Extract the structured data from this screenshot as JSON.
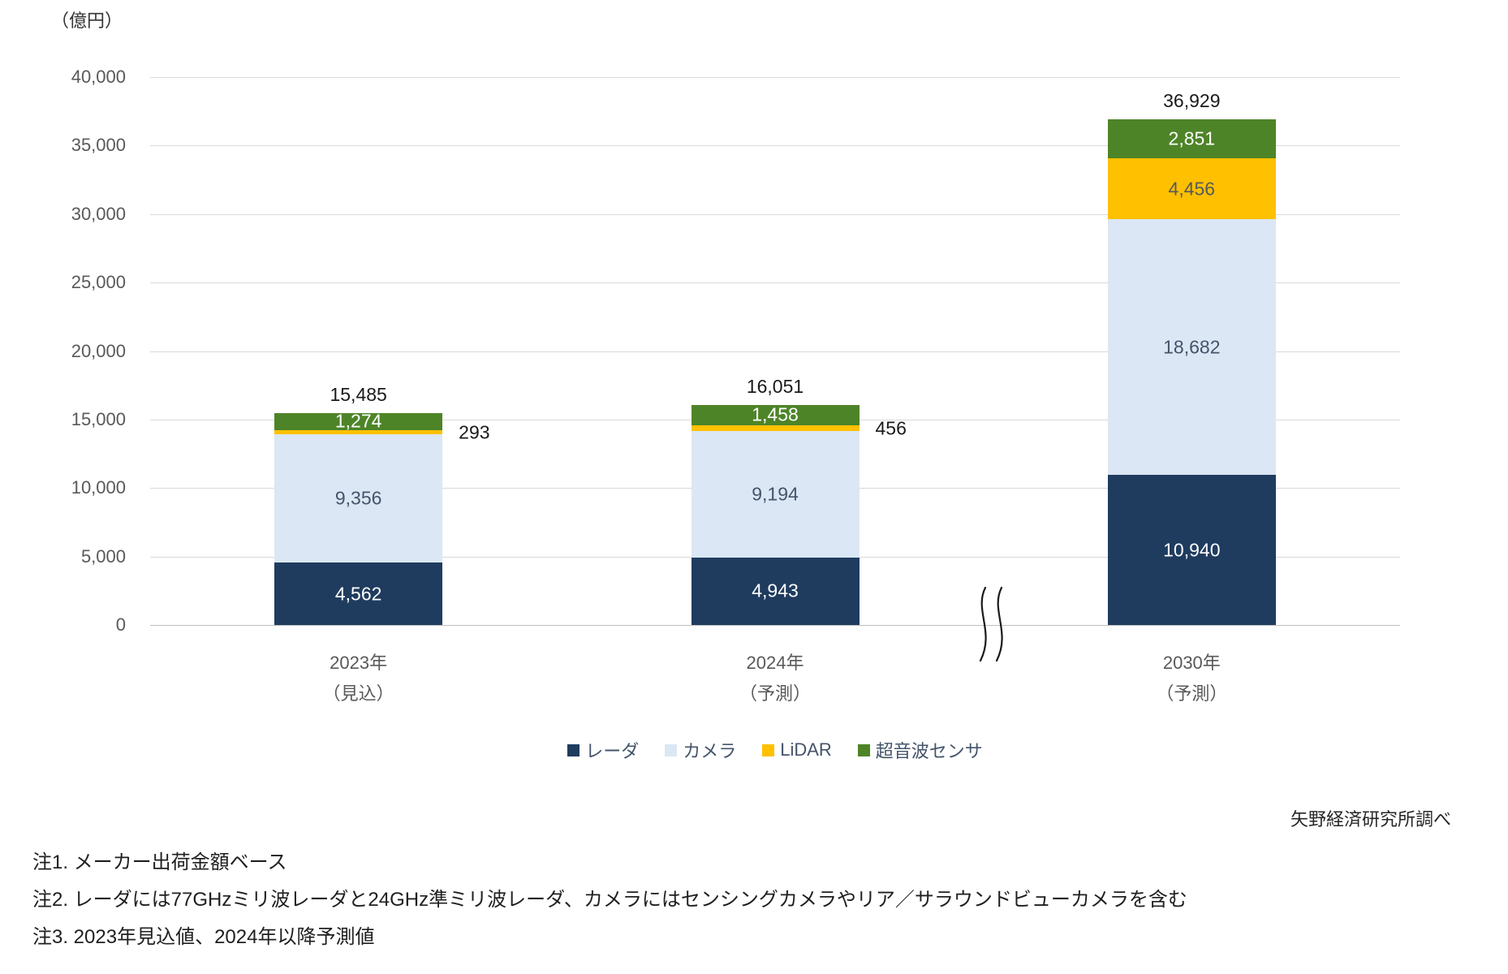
{
  "chart_data": {
    "type": "bar",
    "stacked": true,
    "title": "",
    "ylabel": "（億円）",
    "ylim": [
      0,
      40000
    ],
    "ytick_step": 5000,
    "yticks": [
      "40,000",
      "35,000",
      "30,000",
      "25,000",
      "20,000",
      "15,000",
      "10,000",
      "5,000",
      "0"
    ],
    "grid": true,
    "legend_position": "bottom-center",
    "axis_break_between": [
      "2024年",
      "2030年"
    ],
    "series": [
      {
        "name": "レーダ",
        "en": "radar",
        "color": "#1f3c5f",
        "values": [
          4562,
          4943,
          10940
        ]
      },
      {
        "name": "カメラ",
        "en": "camera",
        "color": "#dbe7f4",
        "values": [
          9356,
          9194,
          18682
        ]
      },
      {
        "name": "LiDAR",
        "en": "lidar",
        "color": "#ffc000",
        "values": [
          293,
          456,
          4456
        ]
      },
      {
        "name": "超音波センサ",
        "en": "ultrasonic",
        "color": "#4e8428",
        "values": [
          1274,
          1458,
          2851
        ]
      }
    ],
    "bars": [
      {
        "category": [
          "2023年",
          "（見込）"
        ],
        "total": "15,485",
        "total_value": 15485,
        "segments": [
          {
            "series": 0,
            "value": 4562,
            "label": "4,562",
            "label_style": "dark-bg"
          },
          {
            "series": 1,
            "value": 9356,
            "label": "9,356",
            "label_style": "light-bg"
          },
          {
            "series": 2,
            "value": 293,
            "label": "293",
            "label_style": "outside"
          },
          {
            "series": 3,
            "value": 1274,
            "label": "1,274",
            "label_style": "dark-bg"
          }
        ]
      },
      {
        "category": [
          "2024年",
          "（予測）"
        ],
        "total": "16,051",
        "total_value": 16051,
        "segments": [
          {
            "series": 0,
            "value": 4943,
            "label": "4,943",
            "label_style": "dark-bg"
          },
          {
            "series": 1,
            "value": 9194,
            "label": "9,194",
            "label_style": "light-bg"
          },
          {
            "series": 2,
            "value": 456,
            "label": "456",
            "label_style": "outside"
          },
          {
            "series": 3,
            "value": 1458,
            "label": "1,458",
            "label_style": "dark-bg"
          }
        ]
      },
      {
        "category": [
          "2030年",
          "（予測）"
        ],
        "total": "36,929",
        "total_value": 36929,
        "segments": [
          {
            "series": 0,
            "value": 10940,
            "label": "10,940",
            "label_style": "dark-bg"
          },
          {
            "series": 1,
            "value": 18682,
            "label": "18,682",
            "label_style": "light-bg"
          },
          {
            "series": 2,
            "value": 4456,
            "label": "4,456",
            "label_style": "yellow-bg"
          },
          {
            "series": 3,
            "value": 2851,
            "label": "2,851",
            "label_style": "dark-bg"
          }
        ]
      }
    ]
  },
  "source": "矢野経済研究所調べ",
  "notes": [
    "注1. メーカー出荷金額ベース",
    "注2. レーダには77GHzミリ波レーダと24GHz準ミリ波レーダ、カメラにはセンシングカメラやリア／サラウンドビューカメラを含む",
    "注3. 2023年見込値、2024年以降予測値"
  ]
}
